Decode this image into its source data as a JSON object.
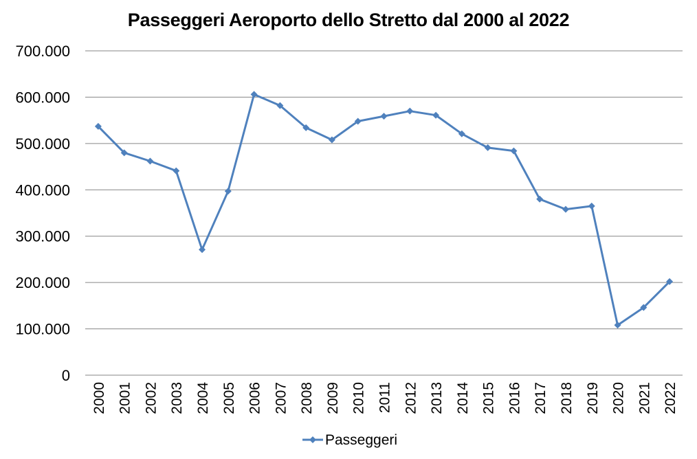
{
  "chart_data": {
    "type": "line",
    "title": "Passeggeri Aeroporto dello Stretto dal 2000 al 2022",
    "xlabel": "",
    "ylabel": "",
    "categories": [
      "2000",
      "2001",
      "2002",
      "2003",
      "2004",
      "2005",
      "2006",
      "2007",
      "2008",
      "2009",
      "2010",
      "2011",
      "2012",
      "2013",
      "2014",
      "2015",
      "2016",
      "2017",
      "2018",
      "2019",
      "2020",
      "2021",
      "2022"
    ],
    "series": [
      {
        "name": "Passeggeri",
        "color": "#4F81BD",
        "marker": "diamond",
        "values": [
          537000,
          480000,
          462000,
          441000,
          271000,
          397000,
          606000,
          582000,
          534000,
          508000,
          548000,
          559000,
          570000,
          561000,
          521000,
          491000,
          484000,
          380000,
          358000,
          365000,
          108000,
          146000,
          202000
        ]
      }
    ],
    "ylim": [
      0,
      700000
    ],
    "y_ticks": [
      {
        "value": 0,
        "label": "0"
      },
      {
        "value": 100000,
        "label": "100.000"
      },
      {
        "value": 200000,
        "label": "200.000"
      },
      {
        "value": 300000,
        "label": "300.000"
      },
      {
        "value": 400000,
        "label": "400.000"
      },
      {
        "value": 500000,
        "label": "500.000"
      },
      {
        "value": 600000,
        "label": "600.000"
      },
      {
        "value": 700000,
        "label": "700.000"
      }
    ],
    "grid": true,
    "gridline_color": "#868686",
    "legend_position": "bottom",
    "x_tick_rotation": "vertical"
  }
}
